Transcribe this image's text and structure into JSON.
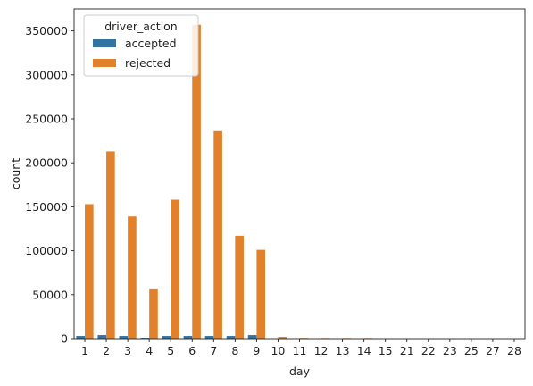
{
  "chart_data": {
    "type": "bar",
    "xlabel": "day",
    "ylabel": "count",
    "categories": [
      "1",
      "2",
      "3",
      "4",
      "5",
      "6",
      "7",
      "8",
      "9",
      "10",
      "11",
      "12",
      "13",
      "14",
      "15",
      "21",
      "22",
      "23",
      "25",
      "27",
      "28"
    ],
    "series": [
      {
        "name": "accepted",
        "color": "#3274a1",
        "values": [
          3000,
          4000,
          3000,
          1000,
          3000,
          3000,
          3000,
          3000,
          4000,
          0,
          0,
          0,
          0,
          0,
          0,
          0,
          0,
          0,
          0,
          0,
          0
        ]
      },
      {
        "name": "rejected",
        "color": "#e1812c",
        "values": [
          153000,
          213000,
          139000,
          57000,
          158000,
          357000,
          236000,
          117000,
          101000,
          2000,
          800,
          700,
          700,
          700,
          300,
          200,
          200,
          200,
          100,
          100,
          100
        ]
      }
    ],
    "yticks": [
      0,
      50000,
      100000,
      150000,
      200000,
      250000,
      300000,
      350000
    ],
    "ylim": [
      0,
      375000
    ],
    "grid": false,
    "legend": {
      "title": "driver_action",
      "placement": "top-left"
    }
  }
}
